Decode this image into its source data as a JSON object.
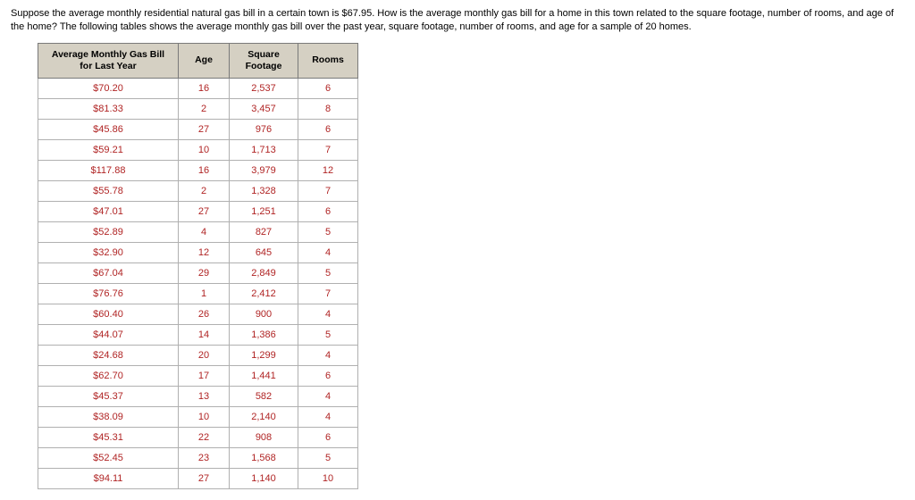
{
  "intro_text": "Suppose the average monthly residential natural gas bill in a certain town is $67.95. How is the average monthly gas bill for a home in this town related to the square footage, number of rooms, and age of the home? The following tables shows the average monthly gas bill over the past year, square footage, number of rooms, and age for a sample of 20 homes.",
  "table": {
    "columns": [
      "Average Monthly Gas Bill for Last Year",
      "Age",
      "Square Footage",
      "Rooms"
    ],
    "rows": [
      [
        "$70.20",
        "16",
        "2,537",
        "6"
      ],
      [
        "$81.33",
        "2",
        "3,457",
        "8"
      ],
      [
        "$45.86",
        "27",
        "976",
        "6"
      ],
      [
        "$59.21",
        "10",
        "1,713",
        "7"
      ],
      [
        "$117.88",
        "16",
        "3,979",
        "12"
      ],
      [
        "$55.78",
        "2",
        "1,328",
        "7"
      ],
      [
        "$47.01",
        "27",
        "1,251",
        "6"
      ],
      [
        "$52.89",
        "4",
        "827",
        "5"
      ],
      [
        "$32.90",
        "12",
        "645",
        "4"
      ],
      [
        "$67.04",
        "29",
        "2,849",
        "5"
      ],
      [
        "$76.76",
        "1",
        "2,412",
        "7"
      ],
      [
        "$60.40",
        "26",
        "900",
        "4"
      ],
      [
        "$44.07",
        "14",
        "1,386",
        "5"
      ],
      [
        "$24.68",
        "20",
        "1,299",
        "4"
      ],
      [
        "$62.70",
        "17",
        "1,441",
        "6"
      ],
      [
        "$45.37",
        "13",
        "582",
        "4"
      ],
      [
        "$38.09",
        "10",
        "2,140",
        "4"
      ],
      [
        "$45.31",
        "22",
        "908",
        "6"
      ],
      [
        "$52.45",
        "23",
        "1,568",
        "5"
      ],
      [
        "$94.11",
        "27",
        "1,140",
        "10"
      ]
    ],
    "header_bg": "#d5d0c3",
    "cell_text_color": "#b02424",
    "border_color": "#b0b0b0"
  }
}
